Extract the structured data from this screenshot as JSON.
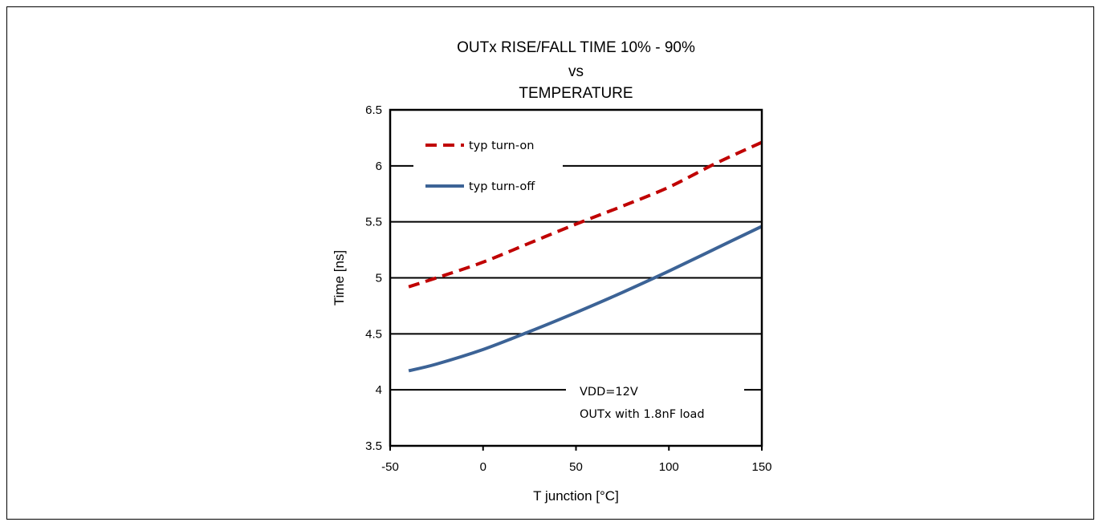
{
  "chart_data": {
    "type": "line",
    "title": [
      "OUTx RISE/FALL TIME 10% - 90%",
      "vs",
      "TEMPERATURE"
    ],
    "xlabel": "T junction  [°C]",
    "ylabel": "Time [ns]",
    "xlim": [
      -50,
      150
    ],
    "ylim": [
      3.5,
      6.5
    ],
    "xticks": [
      "-50",
      "0",
      "50",
      "100",
      "150"
    ],
    "yticks": [
      "3.5",
      "4",
      "4.5",
      "5",
      "5.5",
      "6",
      "6.5"
    ],
    "grid": "horizontal",
    "legend_position": "top-left",
    "series": [
      {
        "name": "typ turn-on",
        "style": "dashed",
        "color": "#C00000",
        "x": [
          -40,
          -25,
          0,
          25,
          50,
          75,
          100,
          125,
          150
        ],
        "y": [
          4.92,
          5.0,
          5.14,
          5.31,
          5.48,
          5.64,
          5.81,
          6.02,
          6.21
        ]
      },
      {
        "name": "typ turn-off",
        "style": "solid",
        "color": "#3C6396",
        "x": [
          -40,
          -25,
          0,
          25,
          50,
          75,
          100,
          125,
          150
        ],
        "y": [
          4.17,
          4.23,
          4.36,
          4.52,
          4.69,
          4.87,
          5.06,
          5.26,
          5.46
        ]
      }
    ],
    "annotation": [
      "VDD=12V",
      "OUTx with 1.8nF load"
    ]
  }
}
